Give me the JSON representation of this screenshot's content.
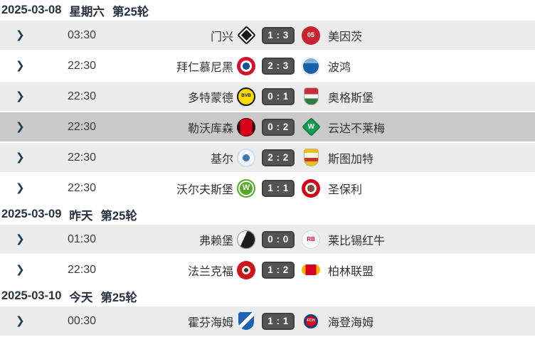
{
  "icons": {
    "chevron": "❯"
  },
  "colors": {
    "row_alt_bg": "#ececec",
    "row_selected_bg": "#c9c9c9",
    "score_badge_bg": "#545454",
    "score_badge_border": "#3f3f3f",
    "chevron": "#1d3d52",
    "header_text": "#28323e",
    "body_text": "#333333"
  },
  "sections": [
    {
      "header": {
        "date": "2025-03-08",
        "day": "星期六",
        "round": "第25轮"
      },
      "matches": [
        {
          "time": "03:30",
          "home": {
            "name": "门兴",
            "logo_text": ""
          },
          "score": "1 : 3",
          "away": {
            "name": "美因茨",
            "logo_text": "05"
          },
          "highlighted": false
        },
        {
          "time": "22:30",
          "home": {
            "name": "拜仁慕尼黑",
            "logo_text": ""
          },
          "score": "2 : 3",
          "away": {
            "name": "波鸿",
            "logo_text": ""
          },
          "highlighted": false
        },
        {
          "time": "22:30",
          "home": {
            "name": "多特蒙德",
            "logo_text": "BVB"
          },
          "score": "0 : 1",
          "away": {
            "name": "奥格斯堡",
            "logo_text": ""
          },
          "highlighted": false
        },
        {
          "time": "22:30",
          "home": {
            "name": "勒沃库森",
            "logo_text": ""
          },
          "score": "0 : 2",
          "away": {
            "name": "云达不莱梅",
            "logo_text": "W"
          },
          "highlighted": true
        },
        {
          "time": "22:30",
          "home": {
            "name": "基尔",
            "logo_text": ""
          },
          "score": "2 : 2",
          "away": {
            "name": "斯图加特",
            "logo_text": ""
          },
          "highlighted": false
        },
        {
          "time": "22:30",
          "home": {
            "name": "沃尔夫斯堡",
            "logo_text": "W"
          },
          "score": "1 : 1",
          "away": {
            "name": "圣保利",
            "logo_text": ""
          },
          "highlighted": false
        }
      ]
    },
    {
      "header": {
        "date": "2025-03-09",
        "day": "昨天",
        "round": "第25轮"
      },
      "matches": [
        {
          "time": "01:30",
          "home": {
            "name": "弗赖堡",
            "logo_text": ""
          },
          "score": "0 : 0",
          "away": {
            "name": "莱比锡红牛",
            "logo_text": "RB"
          },
          "highlighted": false
        },
        {
          "time": "22:30",
          "home": {
            "name": "法兰克福",
            "logo_text": ""
          },
          "score": "1 : 2",
          "away": {
            "name": "柏林联盟",
            "logo_text": ""
          },
          "highlighted": false
        }
      ]
    },
    {
      "header": {
        "date": "2025-03-10",
        "day": "今天",
        "round": "第25轮"
      },
      "matches": [
        {
          "time": "00:30",
          "home": {
            "name": "霍芬海姆",
            "logo_text": ""
          },
          "score": "1 : 1",
          "away": {
            "name": "海登海姆",
            "logo_text": "FCH"
          },
          "highlighted": false
        }
      ]
    }
  ]
}
